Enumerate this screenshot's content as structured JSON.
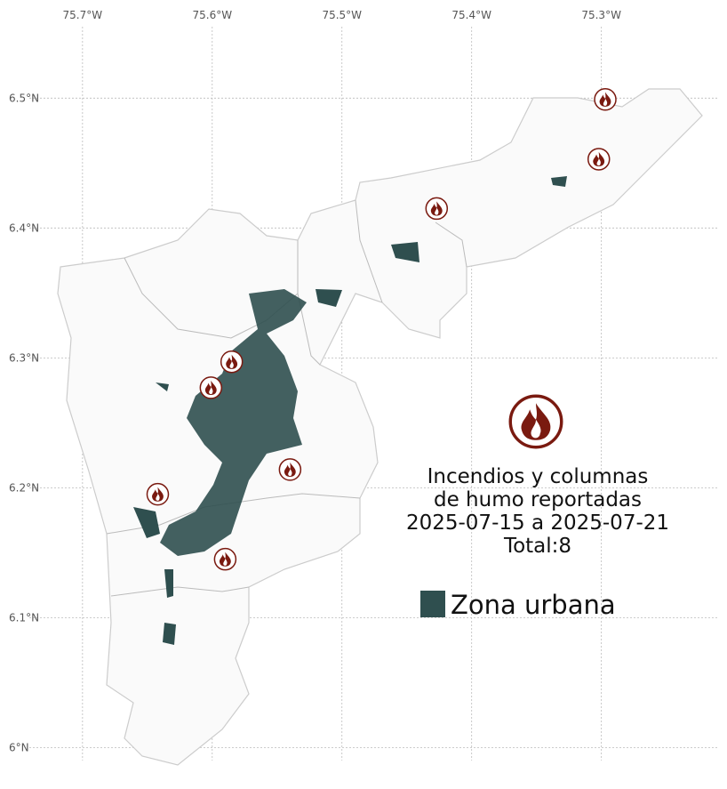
{
  "map": {
    "type": "map",
    "xlim": [
      -75.741,
      -75.21
    ],
    "ylim": [
      5.99,
      6.555
    ],
    "xticks": [
      {
        "value": -75.7,
        "label": "75.7°W"
      },
      {
        "value": -75.6,
        "label": "75.6°W"
      },
      {
        "value": -75.5,
        "label": "75.5°W"
      },
      {
        "value": -75.4,
        "label": "75.4°W"
      },
      {
        "value": -75.3,
        "label": "75.3°W"
      }
    ],
    "yticks": [
      {
        "value": 6.0,
        "label": "6°N"
      },
      {
        "value": 6.1,
        "label": "6.1°N"
      },
      {
        "value": 6.2,
        "label": "6.2°N"
      },
      {
        "value": 6.3,
        "label": "6.3°N"
      },
      {
        "value": 6.4,
        "label": "6.4°N"
      },
      {
        "value": 6.5,
        "label": "6.5°N"
      }
    ],
    "grid": true,
    "title": [
      "Incendios y columnas",
      "de humo reportadas",
      "2025-07-15 a 2025-07-21",
      "Total:8"
    ],
    "legend": {
      "label": "Zona urbana",
      "color": "#2f4f4f"
    },
    "fire_color": "#7a1a10",
    "fires": [
      {
        "lon": -75.297,
        "lat": 6.499
      },
      {
        "lon": -75.302,
        "lat": 6.453
      },
      {
        "lon": -75.427,
        "lat": 6.415
      },
      {
        "lon": -75.585,
        "lat": 6.297
      },
      {
        "lon": -75.601,
        "lat": 6.277
      },
      {
        "lon": -75.54,
        "lat": 6.214
      },
      {
        "lon": -75.642,
        "lat": 6.195
      },
      {
        "lon": -75.59,
        "lat": 6.145
      }
    ]
  }
}
